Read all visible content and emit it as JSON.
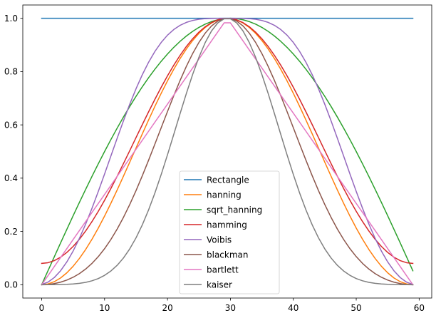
{
  "chart_data": {
    "type": "line",
    "title": "",
    "xlabel": "",
    "ylabel": "",
    "xlim": [
      -3,
      62
    ],
    "ylim": [
      -0.05,
      1.05
    ],
    "xticks": [
      0,
      10,
      20,
      30,
      40,
      50,
      60
    ],
    "yticks": [
      0.0,
      0.2,
      0.4,
      0.6,
      0.8,
      1.0
    ],
    "xtick_labels": [
      "0",
      "10",
      "20",
      "30",
      "40",
      "50",
      "60"
    ],
    "ytick_labels": [
      "0.0",
      "0.2",
      "0.4",
      "0.6",
      "0.8",
      "1.0"
    ],
    "grid": false,
    "legend_position": "lower center",
    "n_points": 60,
    "series": [
      {
        "name": "Rectangle",
        "color": "#1f77b4",
        "kind": "rectangle"
      },
      {
        "name": "hanning",
        "color": "#ff7f0e",
        "kind": "hanning"
      },
      {
        "name": "sqrt_hanning",
        "color": "#2ca02c",
        "kind": "sqrt_hanning"
      },
      {
        "name": "hamming",
        "color": "#d62728",
        "kind": "hamming"
      },
      {
        "name": "Voibis",
        "color": "#9467bd",
        "kind": "vorbis"
      },
      {
        "name": "blackman",
        "color": "#8c564b",
        "kind": "blackman"
      },
      {
        "name": "bartlett",
        "color": "#e377c2",
        "kind": "bartlett"
      },
      {
        "name": "kaiser",
        "color": "#7f7f7f",
        "kind": "kaiser",
        "beta": 14
      }
    ]
  }
}
